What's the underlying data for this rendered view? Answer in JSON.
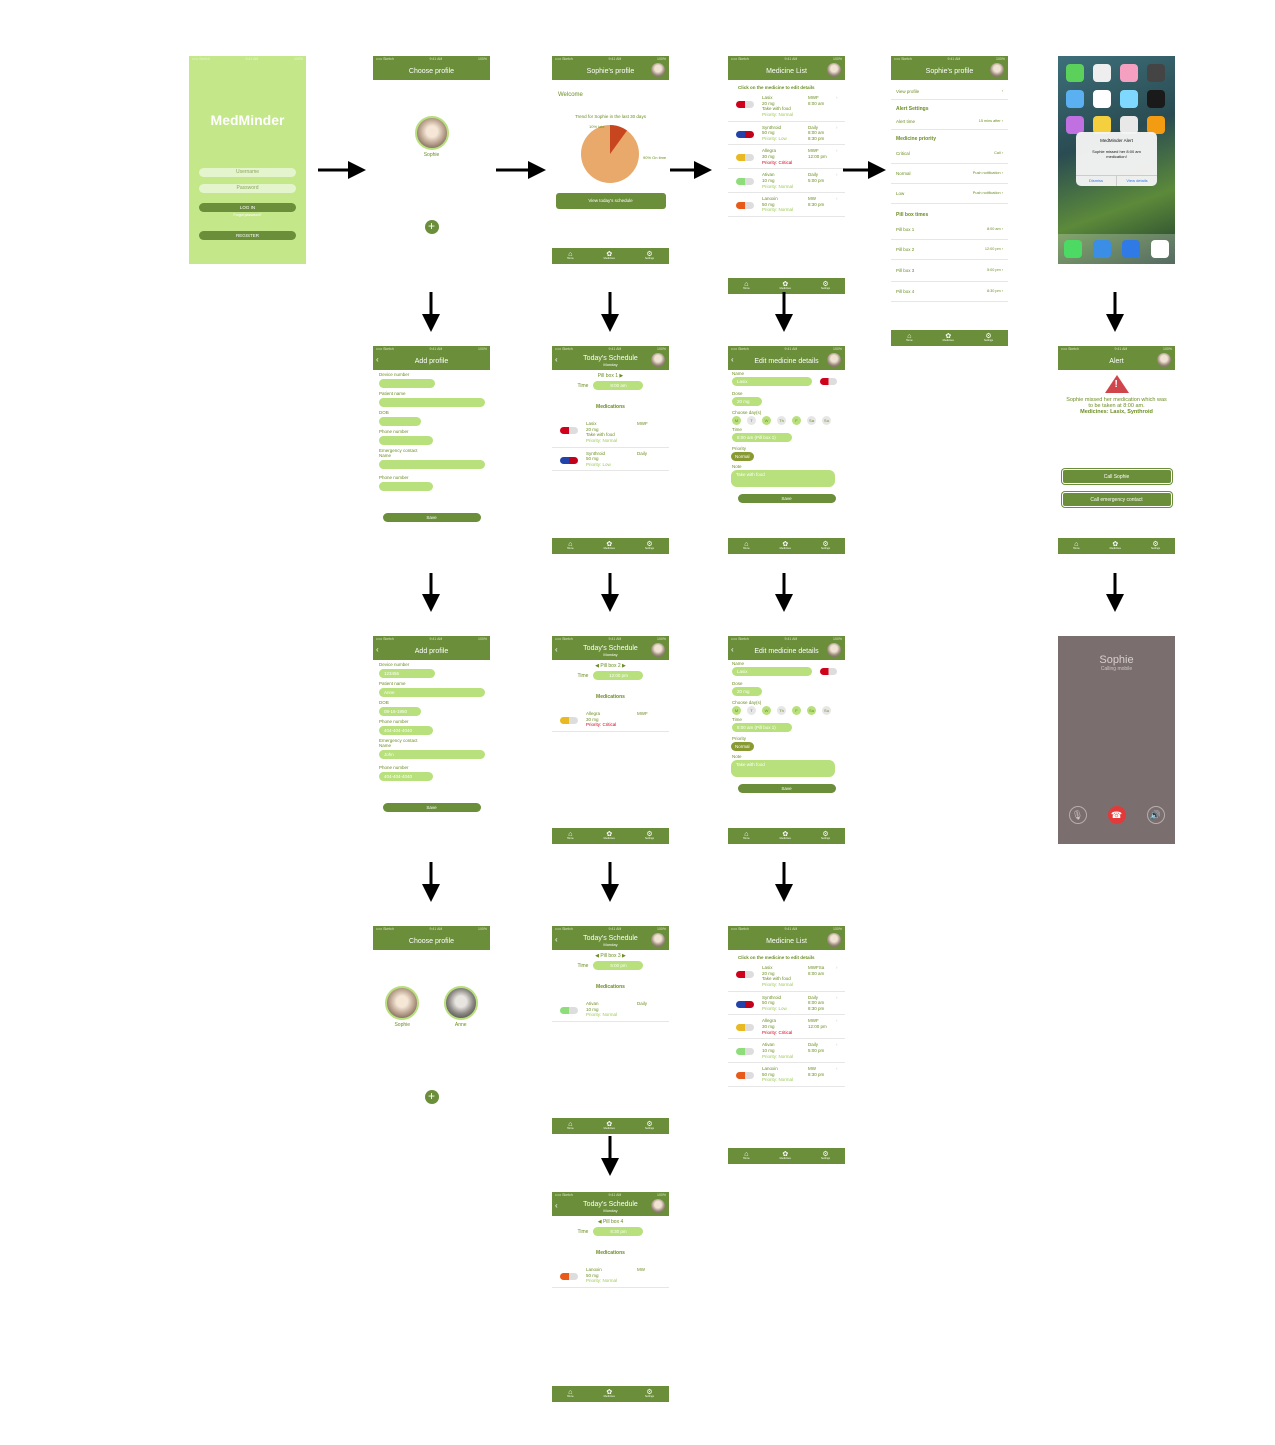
{
  "status": {
    "carrier": "••••• Sketch",
    "time": "9:41 AM",
    "battery": "100%"
  },
  "login": {
    "brand": "MedMinder",
    "username_ph": "Username",
    "password_ph": "Password",
    "login": "LOG IN",
    "forgot": "Forgot password?",
    "register": "REGISTER"
  },
  "choose": {
    "title": "Choose profile",
    "p1": "Sophie",
    "p2": "Anne"
  },
  "profile": {
    "title": "Sophie's profile",
    "welcome": "Welcome",
    "trend": "Trend for Sophie in the last 30 days",
    "late_label": "10% late",
    "ontime_label": "90% On time",
    "button": "View today's schedule",
    "pie": {
      "late": 10,
      "ontime": 90
    }
  },
  "tabs": {
    "home": "Home",
    "meds": "Medicines",
    "settings": "Settings"
  },
  "medlist": {
    "title": "Medicine List",
    "hint": "Click on the medicine to edit details",
    "items": [
      {
        "name": "Lasix",
        "dose": "20 mg",
        "note": "Take with food",
        "prio": "Priority: Normal",
        "freq": "MWF",
        "times": "8:00 am"
      },
      {
        "name": "Synthroid",
        "dose": "50 mg",
        "note": "",
        "prio": "Priority: Low",
        "freq": "Daily",
        "times": "8:00 am\n8:30 pm"
      },
      {
        "name": "Allegra",
        "dose": "30 mg",
        "note": "",
        "prio": "Priority: Critical",
        "freq": "MWF",
        "times": "12:00 pm"
      },
      {
        "name": "Ativan",
        "dose": "10 mg",
        "note": "",
        "prio": "Priority: Normal",
        "freq": "Daily",
        "times": "5:00 pm"
      },
      {
        "name": "Lanoxin",
        "dose": "50 mg",
        "note": "",
        "prio": "Priority: Normal",
        "freq": "MW",
        "times": "8:30 pm"
      }
    ],
    "lasix_freq_updated": "MWFSa"
  },
  "settings": {
    "title": "Sophie's profile",
    "view_profile": "View profile",
    "alert_settings": "Alert Settings",
    "alert_time": "Alert time",
    "alert_time_val": "15 mins after",
    "med_priority": "Medicine priority",
    "critical": "Critical",
    "critical_val": "Call",
    "normal": "Normal",
    "normal_val": "Push notification",
    "low": "Low",
    "low_val": "Push notification",
    "pill_times": "Pill box times",
    "boxes": [
      {
        "n": "Pill box 1",
        "t": "8:00 am"
      },
      {
        "n": "Pill box 2",
        "t": "12:00 pm"
      },
      {
        "n": "Pill box 3",
        "t": "5:00 pm"
      },
      {
        "n": "Pill box 4",
        "t": "8:30 pm"
      }
    ]
  },
  "notif": {
    "title": "MedMinder Alert",
    "body": "Sophie missed her 8:00 am medication!",
    "dismiss": "Dismiss",
    "view": "View details"
  },
  "addprofile": {
    "title": "Add profile",
    "device": "Device number",
    "patient": "Patient name",
    "dob": "DOB",
    "phone": "Phone number",
    "emergency": "Emergency contact",
    "name": "Name",
    "phone2": "Phone number",
    "save": "Save",
    "filled": {
      "device": "123456",
      "patient": "Anne",
      "dob": "08-16-1950",
      "phone": "404-404-4040",
      "ename": "John",
      "ephone": "404-404-4040"
    }
  },
  "schedule": {
    "title": "Today's Schedule",
    "day": "Monday",
    "time": "Time",
    "meds": "Medications",
    "boxes": [
      "Pill box 1",
      "Pill box 2",
      "Pill box 3",
      "Pill box 4"
    ],
    "times": [
      "8:00 am",
      "12:00 pm",
      "5:00 pm",
      "8:30 pm"
    ]
  },
  "edit": {
    "title": "Edit medicine details",
    "name_l": "Name",
    "name": "Lasix",
    "dose_l": "Dose",
    "dose": "20 mg",
    "days_l": "Choose day(s)",
    "days": [
      "M",
      "T",
      "W",
      "Th",
      "F",
      "Sa",
      "Su"
    ],
    "time_l": "Time",
    "time": "8:00 am (Pill box 1)",
    "prio_l": "Priority",
    "prio": "Normal",
    "note_l": "Note",
    "note": "Take with food",
    "save": "Save"
  },
  "alert": {
    "title": "Alert",
    "msg": "Sophie missed her medication which was to be taken at 8:00 am.",
    "meds": "Medicines: Lasix, Synthroid",
    "call": "Call Sophie",
    "call_em": "Call emergency contact"
  },
  "call": {
    "name": "Sophie",
    "sub": "Calling mobile"
  }
}
